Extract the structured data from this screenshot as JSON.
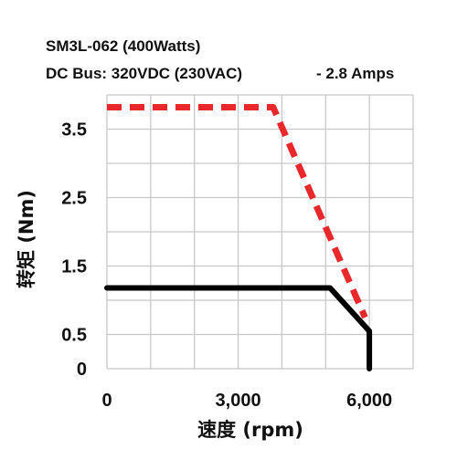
{
  "chart_data": {
    "type": "line",
    "title_line1": "SM3L-062 (400Watts)",
    "title_line2": "DC Bus: 320VDC (230VAC)",
    "title_line2_right": "-   2.8 Amps",
    "xlabel": "速度 (rpm)",
    "ylabel": "转矩 (Nm)",
    "xlim": [
      0,
      7000
    ],
    "ylim": [
      0,
      4.0
    ],
    "x_ticks": [
      {
        "value": 0,
        "label": "0"
      },
      {
        "value": 3000,
        "label": "3,000"
      },
      {
        "value": 6000,
        "label": "6,000"
      }
    ],
    "y_ticks": [
      {
        "value": 0,
        "label": "0"
      },
      {
        "value": 0.5,
        "label": "0.5"
      },
      {
        "value": 1.5,
        "label": "1.5"
      },
      {
        "value": 2.5,
        "label": "2.5"
      },
      {
        "value": 3.5,
        "label": "3.5"
      }
    ],
    "x_grid": [
      0,
      1000,
      2000,
      3000,
      4000,
      5000,
      6000,
      7000
    ],
    "y_grid": [
      0,
      0.5,
      1.0,
      1.5,
      2.0,
      2.5,
      3.0,
      3.5,
      4.0
    ],
    "series": [
      {
        "style": "dashed",
        "color": "#e8282b",
        "x": [
          0,
          3800,
          5900
        ],
        "y": [
          3.82,
          3.82,
          0.75
        ]
      },
      {
        "style": "solid",
        "color": "#000000",
        "x": [
          0,
          5100,
          6000,
          6000
        ],
        "y": [
          1.18,
          1.18,
          0.55,
          0
        ]
      }
    ]
  }
}
